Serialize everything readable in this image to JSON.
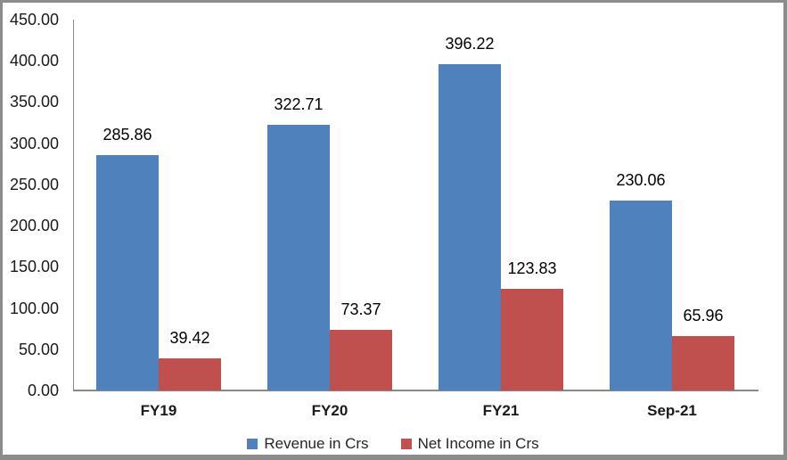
{
  "chart_data": {
    "type": "bar",
    "title": "",
    "categories": [
      "FY19",
      "FY20",
      "FY21",
      "Sep-21"
    ],
    "series": [
      {
        "key": "revenue",
        "name": "Revenue in Crs",
        "color": "#4F81BD",
        "values": [
          285.86,
          322.71,
          396.22,
          230.06
        ]
      },
      {
        "key": "net-income",
        "name": "Net Income in Crs",
        "color": "#C0504D",
        "values": [
          39.42,
          73.37,
          123.83,
          65.96
        ]
      }
    ],
    "ylim": [
      0,
      450
    ],
    "y_tick_step": 50,
    "y_ticks": [
      "450.00",
      "400.00",
      "350.00",
      "300.00",
      "250.00",
      "200.00",
      "150.00",
      "100.00",
      "50.00",
      "0.00"
    ],
    "grid": "off",
    "legend_position": "bottom",
    "data_labels": "on",
    "axis_color": "#898989",
    "frame_border_color": "#8C8C8C"
  }
}
